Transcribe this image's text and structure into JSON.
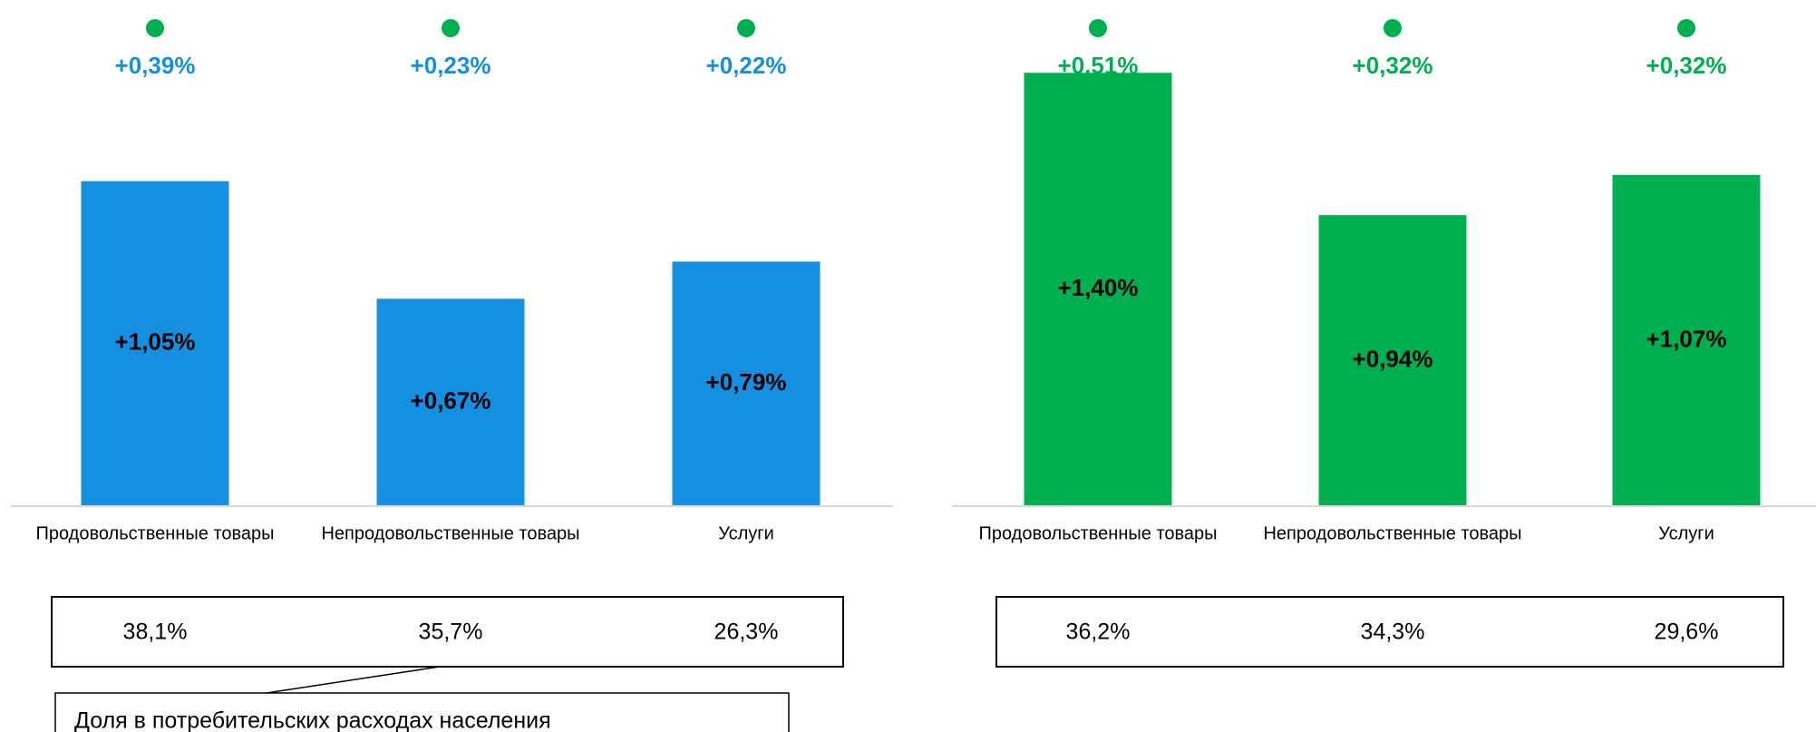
{
  "chart_data": [
    {
      "type": "bar",
      "categories": [
        "Продовольственные товары",
        "Непродовольственные товары",
        "Услуги"
      ],
      "values": [
        1.05,
        0.67,
        0.79
      ],
      "value_labels": [
        "+1,05%",
        "+0,67%",
        "+0,79%"
      ],
      "color": "#1590e0",
      "ylim": [
        0,
        1.6
      ],
      "top_labels": [
        "+0,39%",
        "+0,23%",
        "+0,22%"
      ],
      "top_label_color": "#1590e0",
      "dot_color": "#00b050",
      "shares": [
        "38,1%",
        "35,7%",
        "26,3%"
      ],
      "annotation": "Доля в потребительских расходах населения"
    },
    {
      "type": "bar",
      "categories": [
        "Продовольственные товары",
        "Непродовольственные товары",
        "Услуги"
      ],
      "values": [
        1.4,
        0.94,
        1.07
      ],
      "value_labels": [
        "+1,40%",
        "+0,94%",
        "+1,07%"
      ],
      "color": "#00b050",
      "ylim": [
        0,
        1.6
      ],
      "top_labels": [
        "+0,51%",
        "+0,32%",
        "+0,32%"
      ],
      "top_label_color": "#00b050",
      "dot_color": "#00b050",
      "shares": [
        "36,2%",
        "34,3%",
        "29,6%"
      ]
    }
  ]
}
